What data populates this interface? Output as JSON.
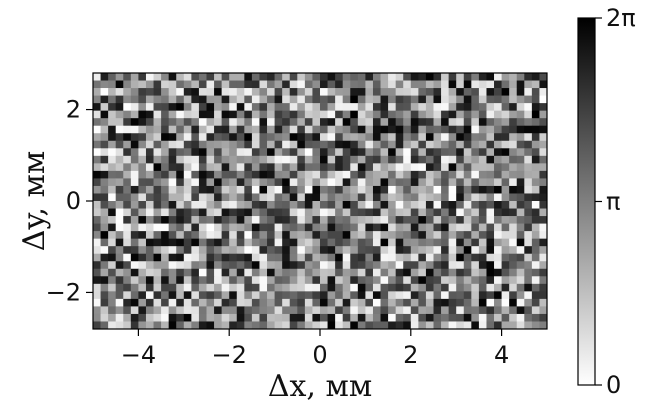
{
  "chart_data": {
    "type": "heatmap",
    "title": "",
    "xlabel": "Δx, мм",
    "ylabel": "Δy, мм",
    "xlim": [
      -5,
      5
    ],
    "ylim": [
      -2.8,
      2.8
    ],
    "x_ticks": [
      {
        "value": -4,
        "label": "−4"
      },
      {
        "value": -2,
        "label": "−2"
      },
      {
        "value": 0,
        "label": "0"
      },
      {
        "value": 2,
        "label": "2"
      },
      {
        "value": 4,
        "label": "4"
      }
    ],
    "y_ticks": [
      {
        "value": -2,
        "label": "−2"
      },
      {
        "value": 0,
        "label": "0"
      },
      {
        "value": 2,
        "label": "2"
      }
    ],
    "grid": false,
    "colormap": "gray_r",
    "value_range": [
      0,
      6.283
    ],
    "pixel_grid": {
      "columns": 60,
      "rows": 34,
      "distribution": "uniform random phase"
    },
    "colorbar": {
      "ticks": [
        {
          "value": 0,
          "label": "0"
        },
        {
          "value": 3.1416,
          "label": "π"
        },
        {
          "value": 6.2832,
          "label": "2π"
        }
      ]
    },
    "colors": {
      "low": "#ffffff",
      "high": "#000000",
      "axis": "#000000"
    }
  }
}
